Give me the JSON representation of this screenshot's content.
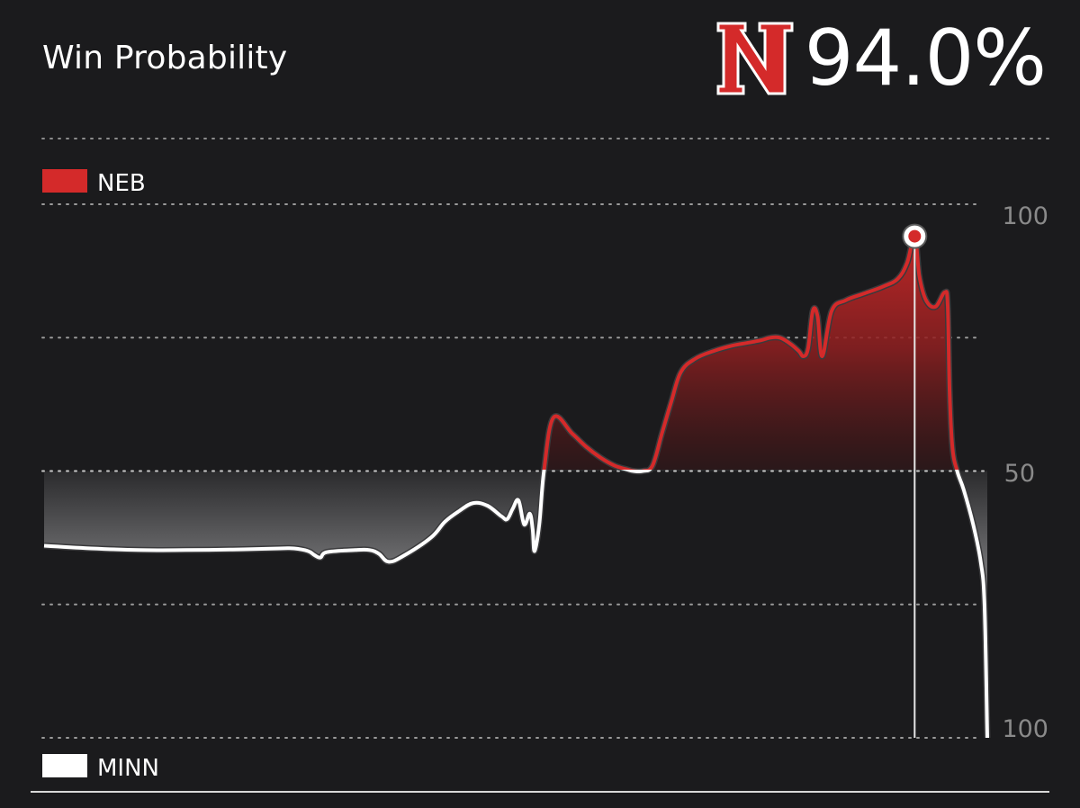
{
  "header": {
    "title": "Win Probability",
    "team_logo_letter": "N",
    "win_probability": "94.0%"
  },
  "colors": {
    "background": "#1b1b1d",
    "home": "#d42a2a",
    "away": "#ffffff",
    "grid": "#9a9a9a",
    "tick": "#8a8a8a"
  },
  "chart_data": {
    "type": "area",
    "title": "Win Probability",
    "legend": [
      {
        "name": "NEB",
        "color": "#d42a2a",
        "position": "top-left"
      },
      {
        "name": "MINN",
        "color": "#ffffff",
        "position": "bottom-left"
      }
    ],
    "y_ticks": [
      "100",
      "50",
      "100"
    ],
    "ylim": [
      0,
      100
    ],
    "baseline": 50,
    "marker": {
      "x": 92.3,
      "y": 94.0
    },
    "series": [
      {
        "x": [
          0,
          5,
          10,
          15,
          20,
          25,
          26.5,
          28,
          28.7,
          29.3,
          30,
          33,
          34.5,
          35.5,
          36.5,
          38,
          41,
          42.5,
          44,
          45.5,
          47,
          48.5,
          49.1,
          49.7,
          50.3,
          50.9,
          51.5,
          51.8,
          52,
          52.5,
          53,
          54,
          56,
          57.5,
          59,
          60.5,
          61.8,
          62.5,
          63.5,
          64.5,
          65.5,
          66.5,
          67.5,
          69,
          71,
          73,
          74.5,
          76,
          77,
          78,
          79,
          80,
          80.5,
          81,
          81.5,
          82,
          82.5,
          83.5,
          85,
          87,
          89,
          90.5,
          91.5,
          92.3,
          92.8,
          93.5,
          94.5,
          95.5,
          95.8,
          96,
          96.3,
          96.8,
          97.5,
          98.5,
          99.3,
          99.7,
          100
        ],
        "y": [
          36,
          35.5,
          35.2,
          35.2,
          35.3,
          35.5,
          35.5,
          35,
          34.2,
          33.8,
          34.8,
          35.2,
          35.2,
          34.5,
          33,
          34,
          37.5,
          40.5,
          42.5,
          44,
          43.5,
          41.5,
          41,
          43,
          44.5,
          40,
          42,
          39,
          35,
          40,
          50,
          60,
          57,
          54.5,
          52.5,
          51,
          50.3,
          50,
          50,
          51,
          57,
          63,
          68.5,
          71,
          72.5,
          73.5,
          74,
          74.5,
          75,
          75,
          74,
          72.5,
          71.5,
          73,
          80,
          79,
          71.5,
          80,
          82,
          83.3,
          84.6,
          86,
          89,
          94,
          86.5,
          82,
          80.8,
          83.5,
          81,
          65,
          54.5,
          50,
          46.5,
          40,
          33,
          25,
          0
        ]
      }
    ]
  }
}
